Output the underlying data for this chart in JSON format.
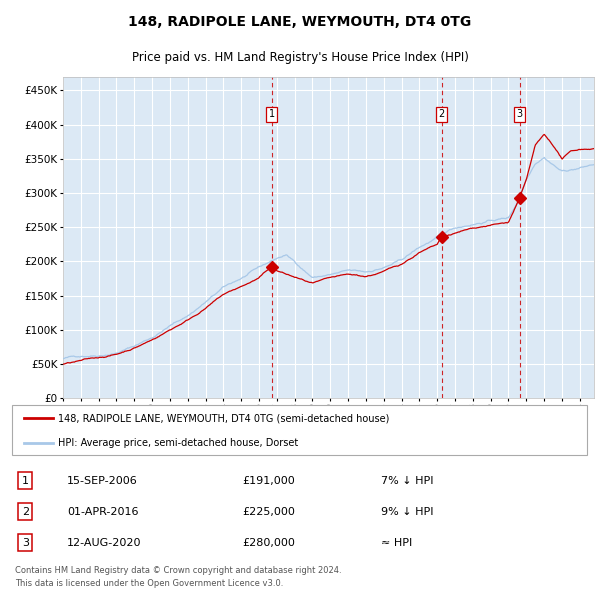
{
  "title": "148, RADIPOLE LANE, WEYMOUTH, DT4 0TG",
  "subtitle": "Price paid vs. HM Land Registry's House Price Index (HPI)",
  "plot_bg_color": "#dce9f5",
  "hpi_color": "#a8c8e8",
  "price_color": "#cc0000",
  "marker_color": "#cc0000",
  "vline_color": "#cc0000",
  "grid_color": "#ffffff",
  "legend_label_red": "148, RADIPOLE LANE, WEYMOUTH, DT4 0TG (semi-detached house)",
  "legend_label_blue": "HPI: Average price, semi-detached house, Dorset",
  "transactions": [
    {
      "num": 1,
      "date_label": "15-SEP-2006",
      "price": 191000,
      "note": "7% ↓ HPI",
      "x_year": 2006.71
    },
    {
      "num": 2,
      "date_label": "01-APR-2016",
      "price": 225000,
      "note": "9% ↓ HPI",
      "x_year": 2016.25
    },
    {
      "num": 3,
      "date_label": "12-AUG-2020",
      "price": 280000,
      "note": "≈ HPI",
      "x_year": 2020.62
    }
  ],
  "footer_line1": "Contains HM Land Registry data © Crown copyright and database right 2024.",
  "footer_line2": "This data is licensed under the Open Government Licence v3.0.",
  "ylim": [
    0,
    470000
  ],
  "xlim_start": 1995.0,
  "xlim_end": 2024.8,
  "yticks": [
    0,
    50000,
    100000,
    150000,
    200000,
    250000,
    300000,
    350000,
    400000,
    450000
  ],
  "ytick_labels": [
    "£0",
    "£50K",
    "£100K",
    "£150K",
    "£200K",
    "£250K",
    "£300K",
    "£350K",
    "£400K",
    "£450K"
  ]
}
